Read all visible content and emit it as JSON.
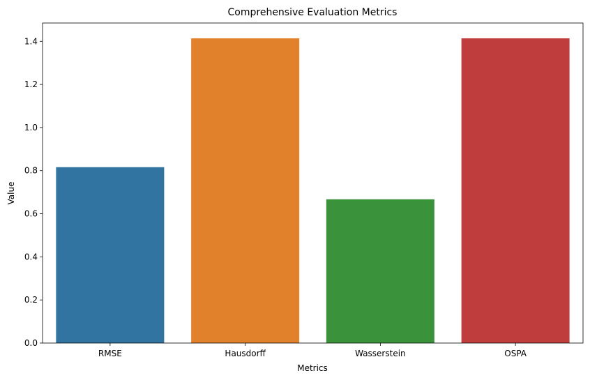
{
  "chart_data": {
    "type": "bar",
    "title": "Comprehensive Evaluation Metrics",
    "xlabel": "Metrics",
    "ylabel": "Value",
    "categories": [
      "RMSE",
      "Hausdorff",
      "Wasserstein",
      "OSPA"
    ],
    "values": [
      0.816,
      1.414,
      0.667,
      1.414
    ],
    "colors": [
      "#3274a1",
      "#e1812c",
      "#3a923a",
      "#c03d3e"
    ],
    "ylim": [
      0,
      1.485
    ],
    "yticks": [
      0.0,
      0.2,
      0.4,
      0.6,
      0.8,
      1.0,
      1.2,
      1.4
    ],
    "ytick_labels": [
      "0.0",
      "0.2",
      "0.4",
      "0.6",
      "0.8",
      "1.0",
      "1.2",
      "1.4"
    ],
    "grid": false,
    "legend": "none"
  }
}
